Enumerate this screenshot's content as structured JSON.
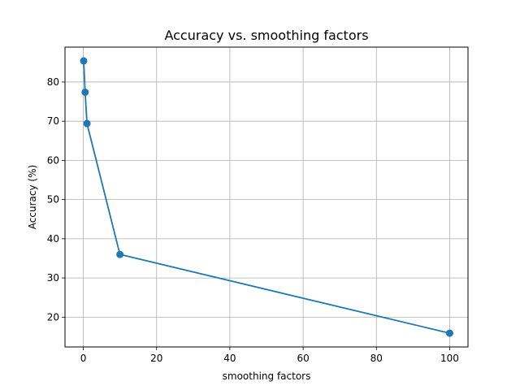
{
  "chart_data": {
    "type": "line",
    "title": "Accuracy vs. smoothing factors",
    "xlabel": "smoothing factors",
    "ylabel": "Accuracy (%)",
    "x": [
      0.1,
      0.5,
      1,
      10,
      100
    ],
    "series": [
      {
        "values": [
          85.4,
          77.4,
          69.4,
          36.0,
          15.9
        ],
        "color": "#1f77b4",
        "marker": "circle"
      }
    ],
    "xlim": [
      -5,
      105
    ],
    "ylim": [
      12.4,
      88.9
    ],
    "xticks": [
      0,
      20,
      40,
      60,
      80,
      100
    ],
    "yticks": [
      20,
      30,
      40,
      50,
      60,
      70,
      80
    ],
    "grid": true,
    "legend": "none"
  }
}
